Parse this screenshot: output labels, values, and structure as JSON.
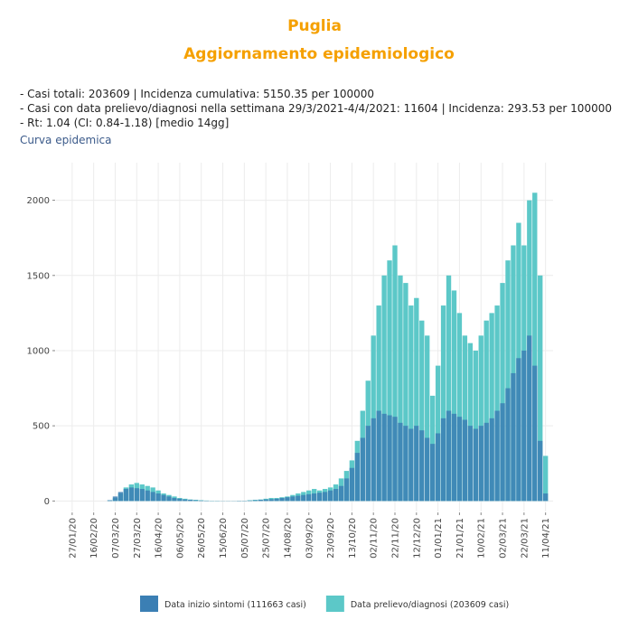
{
  "chart_data": {
    "type": "bar",
    "title": "Puglia",
    "subtitle": "Aggiornamento epidemiologico",
    "annotations": [
      "- Casi totali: 203609 | Incidenza cumulativa: 5150.35 per 100000",
      "- Casi con data prelievo/diagnosi nella settimana 29/3/2021-4/4/2021: 11604 | Incidenza: 293.53 per 100000",
      "- Rt: 1.04 (CI: 0.84-1.18) [medio 14gg]"
    ],
    "plot_label": "Curva epidemica",
    "x": [
      "27/01/20",
      "01/02/20",
      "06/02/20",
      "11/02/20",
      "16/02/20",
      "21/02/20",
      "26/02/20",
      "02/03/20",
      "07/03/20",
      "12/03/20",
      "17/03/20",
      "22/03/20",
      "27/03/20",
      "01/04/20",
      "06/04/20",
      "11/04/20",
      "16/04/20",
      "21/04/20",
      "26/04/20",
      "01/05/20",
      "06/05/20",
      "11/05/20",
      "16/05/20",
      "21/05/20",
      "26/05/20",
      "31/05/20",
      "05/06/20",
      "10/06/20",
      "15/06/20",
      "20/06/20",
      "25/06/20",
      "30/06/20",
      "05/07/20",
      "10/07/20",
      "15/07/20",
      "20/07/20",
      "25/07/20",
      "30/07/20",
      "04/08/20",
      "09/08/20",
      "14/08/20",
      "19/08/20",
      "24/08/20",
      "29/08/20",
      "03/09/20",
      "08/09/20",
      "13/09/20",
      "18/09/20",
      "23/09/20",
      "28/09/20",
      "03/10/20",
      "08/10/20",
      "13/10/20",
      "18/10/20",
      "23/10/20",
      "28/10/20",
      "02/11/20",
      "07/11/20",
      "12/11/20",
      "17/11/20",
      "22/11/20",
      "27/11/20",
      "02/12/20",
      "07/12/20",
      "12/12/20",
      "17/12/20",
      "22/12/20",
      "27/12/20",
      "01/01/21",
      "06/01/21",
      "11/01/21",
      "16/01/21",
      "21/01/21",
      "26/01/21",
      "31/01/21",
      "05/02/21",
      "10/02/21",
      "15/02/21",
      "20/02/21",
      "25/02/21",
      "02/03/21",
      "07/03/21",
      "12/03/21",
      "17/03/21",
      "22/03/21",
      "27/03/21",
      "01/04/21",
      "06/04/21",
      "11/04/21"
    ],
    "series": [
      {
        "name": "Data prelievo/diagnosi (203609 casi)",
        "color": "#5cc8c8",
        "values": [
          0,
          0,
          0,
          0,
          0,
          0,
          0,
          5,
          20,
          50,
          90,
          110,
          120,
          110,
          100,
          90,
          70,
          50,
          40,
          30,
          20,
          15,
          10,
          8,
          5,
          3,
          2,
          2,
          1,
          1,
          1,
          2,
          2,
          5,
          8,
          10,
          15,
          20,
          20,
          25,
          30,
          40,
          50,
          60,
          70,
          80,
          70,
          80,
          90,
          110,
          150,
          200,
          270,
          400,
          600,
          800,
          1100,
          1300,
          1500,
          1600,
          1700,
          1500,
          1450,
          1300,
          1350,
          1200,
          1100,
          700,
          900,
          1300,
          1500,
          1400,
          1250,
          1100,
          1050,
          1000,
          1100,
          1200,
          1250,
          1300,
          1450,
          1600,
          1700,
          1850,
          1700,
          2000,
          2050,
          1500,
          300
        ]
      },
      {
        "name": "Data inizio sintomi (111663 casi)",
        "color": "#3b7fb4",
        "values": [
          0,
          0,
          0,
          0,
          0,
          0,
          0,
          5,
          30,
          60,
          80,
          90,
          85,
          80,
          70,
          60,
          50,
          40,
          30,
          20,
          15,
          10,
          8,
          5,
          3,
          2,
          1,
          1,
          1,
          1,
          1,
          2,
          2,
          3,
          5,
          8,
          10,
          12,
          15,
          20,
          25,
          30,
          35,
          40,
          45,
          50,
          55,
          60,
          70,
          80,
          100,
          150,
          220,
          320,
          420,
          500,
          550,
          600,
          580,
          570,
          560,
          520,
          500,
          480,
          500,
          470,
          420,
          380,
          450,
          550,
          600,
          580,
          560,
          540,
          500,
          480,
          500,
          520,
          550,
          600,
          650,
          750,
          850,
          950,
          1000,
          1100,
          900,
          400,
          50
        ]
      }
    ],
    "legend_order": [
      1,
      0
    ],
    "xlim": [
      "12/01/20",
      "18/04/21"
    ],
    "xticks": [
      "27/01/20",
      "16/02/20",
      "07/03/20",
      "27/03/20",
      "16/04/20",
      "06/05/20",
      "26/05/20",
      "15/06/20",
      "05/07/20",
      "25/07/20",
      "14/08/20",
      "03/09/20",
      "23/09/20",
      "13/10/20",
      "02/11/20",
      "22/11/20",
      "12/12/20",
      "01/01/21",
      "21/01/21",
      "10/02/21",
      "02/03/21",
      "22/03/21",
      "11/04/21"
    ],
    "ylim": [
      -70,
      2250
    ],
    "yticks": [
      0,
      500,
      1000,
      1500,
      2000
    ],
    "grid": true,
    "legend_position": "bottom"
  }
}
